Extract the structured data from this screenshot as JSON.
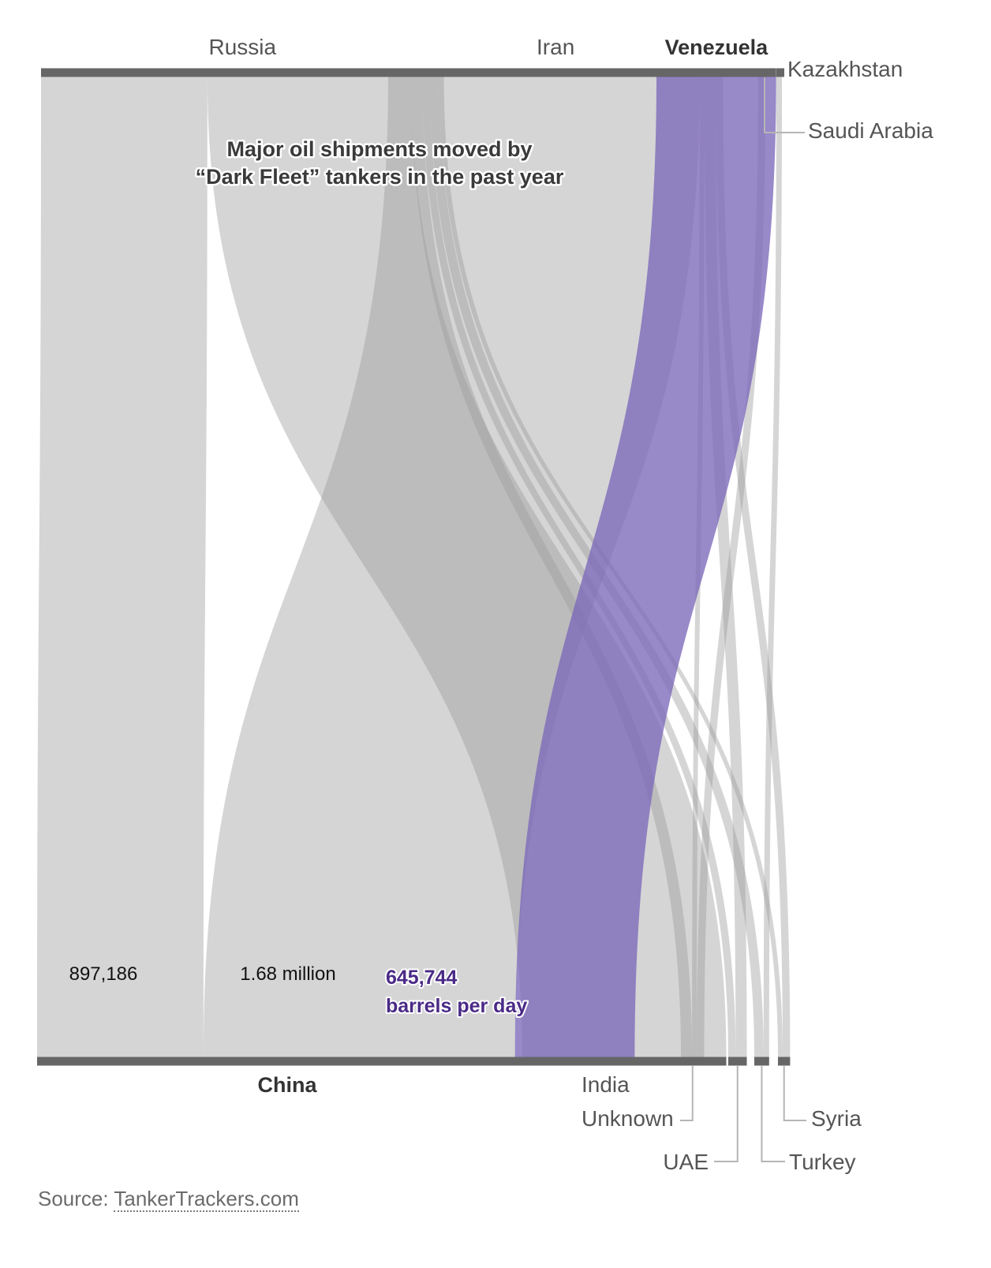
{
  "chart_data": {
    "type": "sankey",
    "title_line1": "Major oil shipments moved by",
    "title_line2": "“Dark Fleet” tankers in the past year",
    "highlight_color": "#7b68ba",
    "highlight_label_color": "#4a2a86",
    "flow_color": "#9a9a9a",
    "node_color": "#666666",
    "sources": [
      {
        "name": "Russia",
        "label": "Russia",
        "bold": false
      },
      {
        "name": "Iran",
        "label": "Iran",
        "bold": false
      },
      {
        "name": "Venezuela",
        "label": "Venezuela",
        "bold": true
      },
      {
        "name": "Saudi Arabia",
        "label": "Saudi Arabia",
        "bold": false
      },
      {
        "name": "Kazakhstan",
        "label": "Kazakhstan",
        "bold": false
      }
    ],
    "targets": [
      {
        "name": "China",
        "label": "China",
        "bold": true
      },
      {
        "name": "India",
        "label": "India",
        "bold": false
      },
      {
        "name": "Unknown",
        "label": "Unknown",
        "bold": false
      },
      {
        "name": "UAE",
        "label": "UAE",
        "bold": false
      },
      {
        "name": "Turkey",
        "label": "Turkey",
        "bold": false
      },
      {
        "name": "Syria",
        "label": "Syria",
        "bold": false
      }
    ],
    "flows": [
      {
        "source": "Russia",
        "target": "China",
        "value": 897186,
        "label": "897,186"
      },
      {
        "source": "Russia",
        "target": "India",
        "value": 1100000
      },
      {
        "source": "Russia",
        "target": "Unknown",
        "value": 60000
      },
      {
        "source": "Russia",
        "target": "UAE",
        "value": 40000
      },
      {
        "source": "Russia",
        "target": "Turkey",
        "value": 50000
      },
      {
        "source": "Russia",
        "target": "Syria",
        "value": 15000
      },
      {
        "source": "Iran",
        "target": "China",
        "value": 1680000,
        "label": "1.68 million"
      },
      {
        "source": "Iran",
        "target": "Unknown",
        "value": 20000
      },
      {
        "source": "Iran",
        "target": "UAE",
        "value": 60000
      },
      {
        "source": "Iran",
        "target": "Syria",
        "value": 40000
      },
      {
        "source": "Venezuela",
        "target": "China",
        "value": 645744,
        "label": "645,744",
        "sublabel": "barrels per day",
        "highlight": true
      },
      {
        "source": "Saudi Arabia",
        "target": "Unknown",
        "value": 40000
      },
      {
        "source": "Kazakhstan",
        "target": "Turkey",
        "value": 30000
      }
    ]
  },
  "source_note": {
    "prefix": "Source: ",
    "link_text": "TankerTrackers.com"
  }
}
